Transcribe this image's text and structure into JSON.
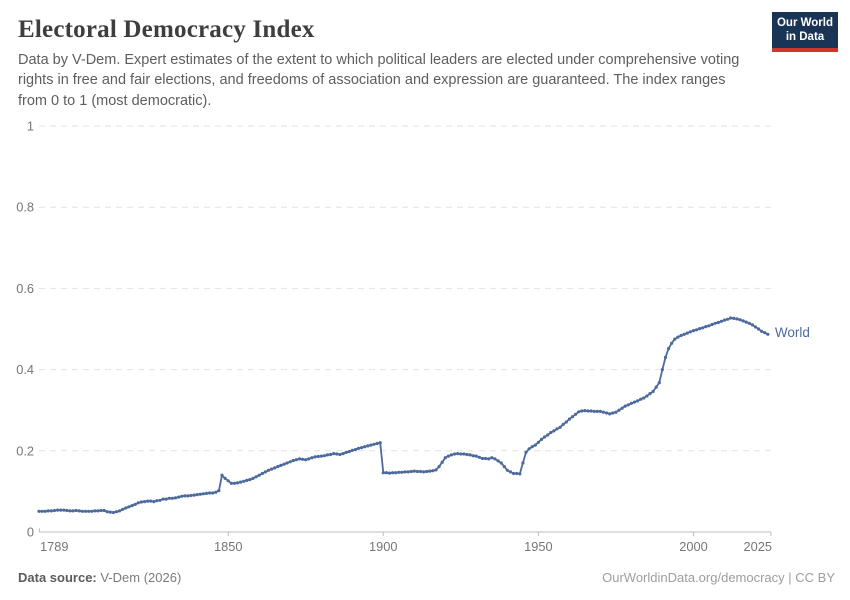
{
  "header": {
    "title": "Electoral Democracy Index",
    "subtitle": "Data by V-Dem. Expert estimates of the extent to which political leaders are elected under comprehensive voting rights in free and fair elections, and freedoms of association and expression are guaranteed. The index ranges from 0 to 1 (most democratic).",
    "logo": {
      "line1": "Our World",
      "line2": "in Data",
      "bg_color": "#1a3455",
      "bar_color": "#ce352c"
    }
  },
  "footer": {
    "source_label": "Data source:",
    "source_value": "V-Dem (2026)",
    "attribution": "OurWorldinData.org/democracy | CC BY"
  },
  "chart_data": {
    "type": "line",
    "title": "Electoral Democracy Index",
    "xlabel": "",
    "ylabel": "",
    "xlim": [
      1789,
      2025
    ],
    "ylim": [
      0,
      1
    ],
    "x_ticks": [
      1789,
      1850,
      1900,
      1950,
      2000,
      2025
    ],
    "x_tick_labels": [
      "1789",
      "1850",
      "1900",
      "1950",
      "2000",
      "2025"
    ],
    "y_ticks": [
      0,
      0.2,
      0.4,
      0.6,
      0.8,
      1
    ],
    "y_tick_labels": [
      "0",
      "0.2",
      "0.4",
      "0.6",
      "0.8",
      "1"
    ],
    "grid": "horizontal-dashed",
    "legend_position": "end-of-line",
    "line_color": "#4C6A9E",
    "marker": "circle",
    "series": [
      {
        "name": "World",
        "x_start": 1789,
        "x_step": 1,
        "values": [
          0.051,
          0.051,
          0.051,
          0.052,
          0.052,
          0.053,
          0.054,
          0.054,
          0.054,
          0.053,
          0.052,
          0.052,
          0.053,
          0.052,
          0.051,
          0.051,
          0.051,
          0.051,
          0.052,
          0.052,
          0.053,
          0.053,
          0.05,
          0.049,
          0.048,
          0.05,
          0.052,
          0.056,
          0.059,
          0.062,
          0.065,
          0.068,
          0.072,
          0.074,
          0.075,
          0.076,
          0.076,
          0.075,
          0.077,
          0.078,
          0.081,
          0.081,
          0.083,
          0.083,
          0.084,
          0.086,
          0.088,
          0.089,
          0.089,
          0.09,
          0.091,
          0.092,
          0.093,
          0.094,
          0.095,
          0.096,
          0.096,
          0.098,
          0.102,
          0.14,
          0.132,
          0.126,
          0.12,
          0.12,
          0.121,
          0.123,
          0.125,
          0.127,
          0.129,
          0.132,
          0.136,
          0.14,
          0.144,
          0.148,
          0.152,
          0.155,
          0.158,
          0.161,
          0.164,
          0.167,
          0.17,
          0.173,
          0.176,
          0.178,
          0.18,
          0.179,
          0.178,
          0.18,
          0.183,
          0.185,
          0.186,
          0.187,
          0.188,
          0.19,
          0.191,
          0.193,
          0.192,
          0.191,
          0.193,
          0.196,
          0.198,
          0.201,
          0.203,
          0.206,
          0.208,
          0.21,
          0.212,
          0.214,
          0.216,
          0.218,
          0.22,
          0.146,
          0.146,
          0.145,
          0.146,
          0.146,
          0.147,
          0.147,
          0.148,
          0.148,
          0.149,
          0.15,
          0.149,
          0.149,
          0.148,
          0.149,
          0.15,
          0.151,
          0.153,
          0.161,
          0.172,
          0.183,
          0.187,
          0.19,
          0.192,
          0.193,
          0.192,
          0.192,
          0.191,
          0.19,
          0.188,
          0.187,
          0.184,
          0.181,
          0.181,
          0.18,
          0.183,
          0.18,
          0.175,
          0.17,
          0.161,
          0.152,
          0.148,
          0.144,
          0.144,
          0.143,
          0.17,
          0.196,
          0.205,
          0.21,
          0.214,
          0.221,
          0.228,
          0.234,
          0.239,
          0.245,
          0.249,
          0.254,
          0.258,
          0.265,
          0.271,
          0.278,
          0.284,
          0.29,
          0.296,
          0.298,
          0.299,
          0.298,
          0.298,
          0.297,
          0.297,
          0.297,
          0.295,
          0.293,
          0.291,
          0.293,
          0.295,
          0.3,
          0.305,
          0.31,
          0.313,
          0.317,
          0.32,
          0.323,
          0.327,
          0.33,
          0.335,
          0.341,
          0.346,
          0.357,
          0.368,
          0.4,
          0.43,
          0.452,
          0.465,
          0.475,
          0.48,
          0.484,
          0.487,
          0.49,
          0.493,
          0.496,
          0.498,
          0.501,
          0.503,
          0.506,
          0.508,
          0.511,
          0.514,
          0.516,
          0.519,
          0.522,
          0.524,
          0.527,
          0.526,
          0.525,
          0.523,
          0.52,
          0.517,
          0.514,
          0.51,
          0.505,
          0.5,
          0.494,
          0.491,
          0.487
        ]
      }
    ]
  }
}
